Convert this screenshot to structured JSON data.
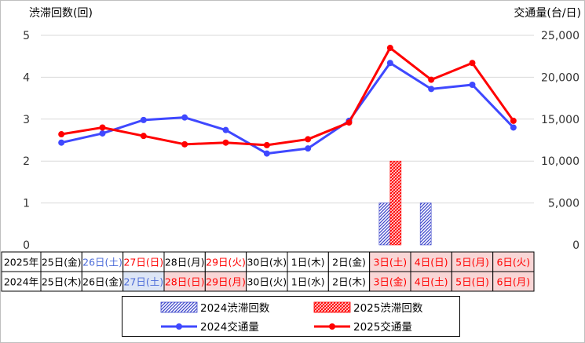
{
  "chart_data": {
    "type": "bar+line",
    "y_left_label": "渋滞回数(回)",
    "y_right_label": "交通量(台/日)",
    "y_left_ticks": [
      "0",
      "1",
      "2",
      "3",
      "4",
      "5"
    ],
    "y_right_ticks": [
      "0",
      "5,000",
      "10,000",
      "15,000",
      "20,000",
      "25,000"
    ],
    "ylim_left": [
      0,
      5
    ],
    "ylim_right": [
      0,
      25000
    ],
    "grid": true,
    "row_headers": [
      "2025年",
      "2024年"
    ],
    "categories_2025": [
      {
        "label": "25日(金)",
        "color": "#000000",
        "bg": "#ffffff"
      },
      {
        "label": "26日(土)",
        "color": "#4a6ad8",
        "bg": "#ffffff"
      },
      {
        "label": "27日(日)",
        "color": "#ff0000",
        "bg": "#ffffff"
      },
      {
        "label": "28日(月)",
        "color": "#000000",
        "bg": "#ffffff"
      },
      {
        "label": "29日(火)",
        "color": "#ff0000",
        "bg": "#ffffff"
      },
      {
        "label": "30日(水)",
        "color": "#000000",
        "bg": "#ffffff"
      },
      {
        "label": "1日(木)",
        "color": "#000000",
        "bg": "#ffffff"
      },
      {
        "label": "2日(金)",
        "color": "#000000",
        "bg": "#ffffff"
      },
      {
        "label": "3日(土)",
        "color": "#ff0000",
        "bg": "#f9d6d6"
      },
      {
        "label": "4日(日)",
        "color": "#ff0000",
        "bg": "#f9d6d6"
      },
      {
        "label": "5日(月)",
        "color": "#ff0000",
        "bg": "#f9d6d6"
      },
      {
        "label": "6日(火)",
        "color": "#ff0000",
        "bg": "#f9d6d6"
      }
    ],
    "categories_2024": [
      {
        "label": "25日(木)",
        "color": "#000000",
        "bg": "#ffffff"
      },
      {
        "label": "26日(金)",
        "color": "#000000",
        "bg": "#ffffff"
      },
      {
        "label": "27日(土)",
        "color": "#4a6ad8",
        "bg": "#dde6f6"
      },
      {
        "label": "28日(日)",
        "color": "#ff0000",
        "bg": "#f9d6d6"
      },
      {
        "label": "29日(月)",
        "color": "#ff0000",
        "bg": "#f9d6d6"
      },
      {
        "label": "30日(火)",
        "color": "#000000",
        "bg": "#ffffff"
      },
      {
        "label": "1日(水)",
        "color": "#000000",
        "bg": "#ffffff"
      },
      {
        "label": "2日(木)",
        "color": "#000000",
        "bg": "#ffffff"
      },
      {
        "label": "3日(金)",
        "color": "#ff0000",
        "bg": "#f9d6d6"
      },
      {
        "label": "4日(土)",
        "color": "#ff0000",
        "bg": "#f9d6d6"
      },
      {
        "label": "5日(日)",
        "color": "#ff0000",
        "bg": "#f9d6d6"
      },
      {
        "label": "6日(月)",
        "color": "#ff0000",
        "bg": "#f9d6d6"
      }
    ],
    "bar_series": [
      {
        "name": "2024渋滞回数",
        "color": "#3f48cc",
        "values": [
          0,
          0,
          0,
          0,
          0,
          0,
          0,
          0,
          1,
          1,
          0,
          0
        ]
      },
      {
        "name": "2025渋滞回数",
        "color": "#ff0000",
        "values": [
          0,
          0,
          0,
          0,
          0,
          0,
          0,
          0,
          2,
          0,
          0,
          0
        ]
      }
    ],
    "line_series": [
      {
        "name": "2024交通量",
        "color": "#3f48ff",
        "values": [
          12200,
          13300,
          14900,
          15200,
          13700,
          10900,
          11500,
          14800,
          21700,
          18600,
          19100,
          14000
        ]
      },
      {
        "name": "2025交通量",
        "color": "#ff0000",
        "values": [
          13200,
          14000,
          13000,
          12000,
          12200,
          11900,
          12600,
          14600,
          23500,
          19700,
          21700,
          14800
        ]
      }
    ]
  }
}
